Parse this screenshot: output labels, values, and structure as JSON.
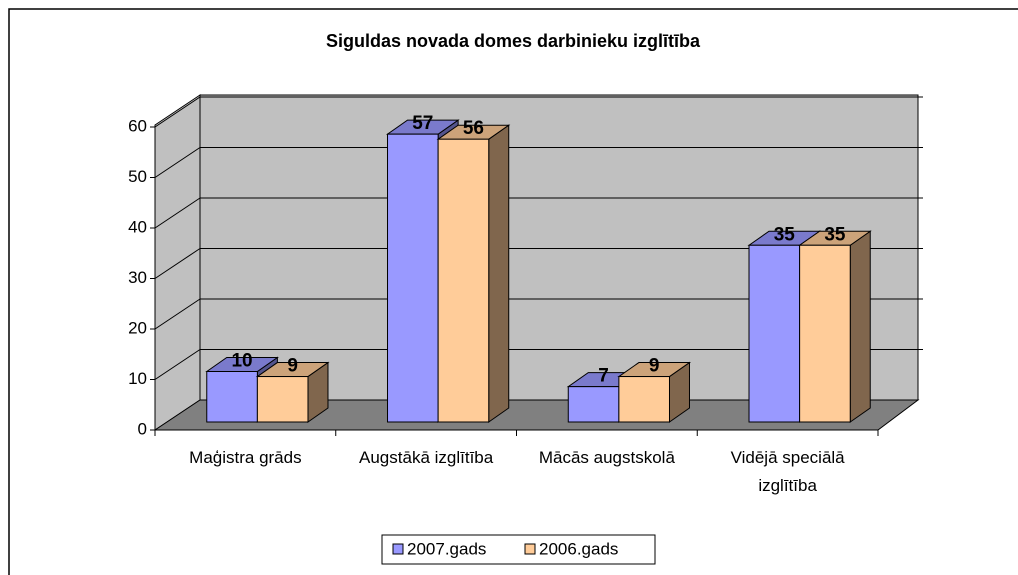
{
  "chart_data": {
    "type": "bar3d",
    "title": "Siguldas novada domes darbinieku izglītība",
    "categories": [
      "Maģistra grāds",
      "Augstākā izglītība",
      "Mācās augstskolā",
      "Vidējā speciālā izglītība"
    ],
    "series": [
      {
        "name": "2007.gads",
        "color": "#9999ff",
        "values": [
          10,
          57,
          7,
          35
        ]
      },
      {
        "name": "2006.gads",
        "color": "#ffcc99",
        "values": [
          9,
          56,
          9,
          35
        ]
      }
    ],
    "ylim": [
      0,
      60
    ],
    "yticks": [
      0,
      10,
      20,
      30,
      40,
      50,
      60
    ],
    "grid": true,
    "legend": "bottom"
  }
}
